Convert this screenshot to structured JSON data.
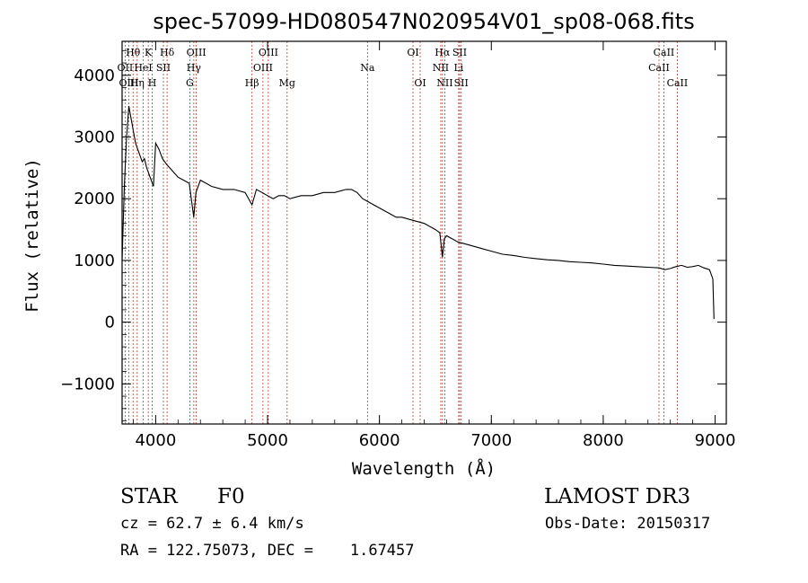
{
  "chart_data": {
    "type": "line",
    "title": "spec-57099-HD080547N020954V01_sp08-068.fits",
    "xlabel": "Wavelength (Å)",
    "ylabel": "Flux (relative)",
    "xlim": [
      3700,
      9100
    ],
    "ylim": [
      -1650,
      4550
    ],
    "xticks": [
      4000,
      5000,
      6000,
      7000,
      8000,
      9000
    ],
    "yticks": [
      -1000,
      0,
      1000,
      2000,
      3000,
      4000
    ],
    "series": [
      {
        "name": "flux",
        "x": [
          3700,
          3720,
          3740,
          3760,
          3780,
          3800,
          3820,
          3840,
          3860,
          3880,
          3900,
          3920,
          3940,
          3960,
          3980,
          4000,
          4030,
          4060,
          4100,
          4150,
          4200,
          4250,
          4300,
          4340,
          4360,
          4400,
          4450,
          4500,
          4600,
          4700,
          4800,
          4861,
          4900,
          4950,
          5000,
          5050,
          5100,
          5150,
          5200,
          5300,
          5400,
          5500,
          5600,
          5700,
          5750,
          5800,
          5850,
          5900,
          5950,
          6000,
          6050,
          6100,
          6150,
          6200,
          6300,
          6400,
          6500,
          6540,
          6563,
          6580,
          6600,
          6650,
          6700,
          6800,
          6900,
          7000,
          7100,
          7200,
          7300,
          7400,
          7500,
          7600,
          7700,
          7800,
          7900,
          8000,
          8100,
          8200,
          8300,
          8400,
          8500,
          8550,
          8600,
          8650,
          8700,
          8750,
          8800,
          8850,
          8900,
          8950,
          8980,
          8990
        ],
        "y": [
          1000,
          2200,
          3000,
          3500,
          3300,
          3100,
          2900,
          2800,
          2700,
          2600,
          2650,
          2500,
          2400,
          2300,
          2200,
          2900,
          2800,
          2650,
          2550,
          2450,
          2350,
          2300,
          2250,
          1700,
          2100,
          2300,
          2250,
          2200,
          2150,
          2150,
          2100,
          1900,
          2150,
          2100,
          2050,
          2000,
          2050,
          2050,
          2000,
          2050,
          2050,
          2100,
          2100,
          2150,
          2150,
          2100,
          2000,
          1950,
          1900,
          1850,
          1800,
          1750,
          1700,
          1700,
          1650,
          1600,
          1500,
          1450,
          1050,
          1350,
          1400,
          1350,
          1300,
          1250,
          1200,
          1150,
          1100,
          1080,
          1050,
          1030,
          1010,
          1000,
          980,
          970,
          960,
          940,
          920,
          910,
          900,
          890,
          880,
          850,
          870,
          900,
          920,
          890,
          900,
          920,
          880,
          850,
          700,
          50
        ]
      }
    ],
    "lines": [
      {
        "label": "Hθ",
        "wave": 3798,
        "row": 1
      },
      {
        "label": "OII",
        "wave": 3727,
        "row": 2
      },
      {
        "label": "OIII",
        "wave": 3760,
        "row": 3
      },
      {
        "label": "Hη",
        "wave": 3835,
        "row": 3
      },
      {
        "label": "HeI",
        "wave": 3889,
        "row": 2
      },
      {
        "label": "K",
        "wave": 3934,
        "row": 1
      },
      {
        "label": "H",
        "wave": 3969,
        "row": 3
      },
      {
        "label": "SII",
        "wave": 4069,
        "row": 2
      },
      {
        "label": "Hδ",
        "wave": 4102,
        "row": 1
      },
      {
        "label": "G",
        "wave": 4305,
        "row": 3
      },
      {
        "label": "OIII",
        "wave": 4363,
        "row": 1
      },
      {
        "label": "Hγ",
        "wave": 4341,
        "row": 2
      },
      {
        "label": "Hβ",
        "wave": 4861,
        "row": 3
      },
      {
        "label": "OIII",
        "wave": 5007,
        "row": 1
      },
      {
        "label": "OIII",
        "wave": 4959,
        "row": 2
      },
      {
        "label": "Mg",
        "wave": 5175,
        "row": 3
      },
      {
        "label": "Na",
        "wave": 5893,
        "row": 2
      },
      {
        "label": "OI",
        "wave": 6300,
        "row": 1
      },
      {
        "label": "OI",
        "wave": 6364,
        "row": 3
      },
      {
        "label": "Hα",
        "wave": 6563,
        "row": 1
      },
      {
        "label": "NII",
        "wave": 6548,
        "row": 2
      },
      {
        "label": "NII",
        "wave": 6584,
        "row": 3
      },
      {
        "label": "SII",
        "wave": 6717,
        "row": 1
      },
      {
        "label": "Li",
        "wave": 6708,
        "row": 2
      },
      {
        "label": "SII",
        "wave": 6731,
        "row": 3
      },
      {
        "label": "CaII",
        "wave": 8542,
        "row": 1
      },
      {
        "label": "CaII",
        "wave": 8498,
        "row": 2
      },
      {
        "label": "CaII",
        "wave": 8662,
        "row": 3
      }
    ]
  },
  "info": {
    "object_class": "STAR",
    "subclass": "F0",
    "survey": "LAMOST DR3",
    "redshift": "cz = 62.7 ± 6.4 km/s",
    "obs_date": "Obs-Date: 20150317",
    "coords": "RA = 122.75073, DEC =    1.67457"
  }
}
